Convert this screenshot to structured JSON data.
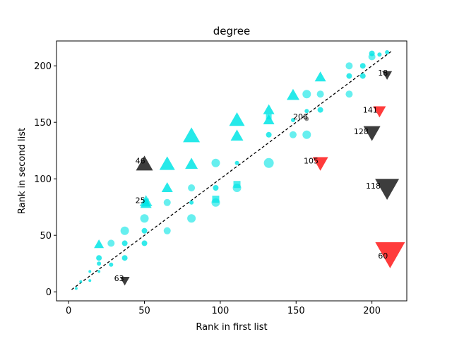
{
  "chart_data": {
    "type": "scatter",
    "title": "degree",
    "xlabel": "Rank in first list",
    "ylabel": "Rank in second list",
    "xlim": [
      -8,
      223
    ],
    "ylim": [
      -8,
      222
    ],
    "xticks": [
      0,
      50,
      100,
      150,
      200
    ],
    "yticks": [
      0,
      50,
      100,
      150,
      200
    ],
    "grid": false,
    "reference_line": {
      "x": [
        2,
        213
      ],
      "y": [
        2,
        213
      ],
      "style": "dashed",
      "color": "#000000"
    },
    "colors": {
      "cyan": "#00e5e5",
      "gray": "#222222",
      "red": "#ff2020"
    },
    "cyan_triangles_up": [
      [
        20,
        42,
        7
      ],
      [
        51,
        78,
        8
      ],
      [
        65,
        92,
        8
      ],
      [
        65,
        113,
        11
      ],
      [
        81,
        113,
        9
      ],
      [
        81,
        138,
        12
      ],
      [
        111,
        138,
        9
      ],
      [
        111,
        152,
        11
      ],
      [
        132,
        152,
        8
      ],
      [
        132,
        161,
        8
      ],
      [
        148,
        174,
        9
      ],
      [
        166,
        190,
        8
      ]
    ],
    "cyan_circles": [
      [
        5,
        3,
        2
      ],
      [
        8,
        9,
        2
      ],
      [
        14,
        10,
        2
      ],
      [
        14,
        18,
        2
      ],
      [
        20,
        18,
        2
      ],
      [
        20,
        25,
        3
      ],
      [
        20,
        30,
        4
      ],
      [
        28,
        24,
        3
      ],
      [
        28,
        43,
        5
      ],
      [
        37,
        30,
        4
      ],
      [
        37,
        43,
        4
      ],
      [
        37,
        54,
        6
      ],
      [
        50,
        43,
        4
      ],
      [
        50,
        54,
        4
      ],
      [
        50,
        65,
        6
      ],
      [
        65,
        54,
        5
      ],
      [
        65,
        79,
        5
      ],
      [
        81,
        65,
        6
      ],
      [
        81,
        79,
        3
      ],
      [
        81,
        92,
        5
      ],
      [
        97,
        79,
        6
      ],
      [
        97,
        92,
        4
      ],
      [
        97,
        114,
        6
      ],
      [
        111,
        92,
        6
      ],
      [
        111,
        114,
        3
      ],
      [
        132,
        114,
        7
      ],
      [
        132,
        139,
        4
      ],
      [
        148,
        139,
        5
      ],
      [
        148,
        152,
        3
      ],
      [
        157,
        139,
        6
      ],
      [
        157,
        160,
        3
      ],
      [
        157,
        175,
        6
      ],
      [
        166,
        161,
        4
      ],
      [
        166,
        175,
        5
      ],
      [
        185,
        175,
        5
      ],
      [
        185,
        191,
        4
      ],
      [
        185,
        200,
        5
      ],
      [
        194,
        191,
        4
      ],
      [
        194,
        200,
        4
      ],
      [
        200,
        208,
        5
      ],
      [
        200,
        211,
        4
      ],
      [
        205,
        210,
        3
      ],
      [
        210,
        212,
        3
      ]
    ],
    "cyan_squares": [
      [
        97,
        82,
        5
      ],
      [
        111,
        95,
        5
      ],
      [
        51,
        80,
        4
      ],
      [
        132,
        155,
        4
      ]
    ],
    "gray_points": [
      [
        157,
        153,
        3
      ]
    ],
    "triangles_down": [
      {
        "x": 50,
        "y": 113,
        "size": 12,
        "color": "gray",
        "dir": "up",
        "label": "46"
      },
      {
        "x": 37,
        "y": 10,
        "size": 7,
        "color": "gray",
        "dir": "down",
        "label": "63"
      },
      {
        "x": 210,
        "y": 192,
        "size": 7,
        "color": "gray",
        "dir": "down",
        "label": "18"
      },
      {
        "x": 205,
        "y": 160,
        "size": 9,
        "color": "red",
        "dir": "down",
        "label": "141"
      },
      {
        "x": 200,
        "y": 141,
        "size": 12,
        "color": "gray",
        "dir": "down",
        "label": "128"
      },
      {
        "x": 166,
        "y": 114,
        "size": 11,
        "color": "red",
        "dir": "down",
        "label": "105"
      },
      {
        "x": 210,
        "y": 92,
        "size": 17,
        "color": "gray",
        "dir": "down",
        "label": "118"
      },
      {
        "x": 212,
        "y": 34,
        "size": 21,
        "color": "red",
        "dir": "down",
        "label": "60"
      },
      {
        "x": 51,
        "y": 80,
        "size": 9,
        "color": "cyan",
        "dir": "up",
        "label": "25"
      }
    ],
    "annotations": [
      {
        "text": "46",
        "x": 44,
        "y": 116
      },
      {
        "text": "25",
        "x": 44,
        "y": 81
      },
      {
        "text": "63",
        "x": 30,
        "y": 12
      },
      {
        "text": "206",
        "x": 148,
        "y": 155
      },
      {
        "text": "105",
        "x": 155,
        "y": 116
      },
      {
        "text": "18",
        "x": 204,
        "y": 194
      },
      {
        "text": "141",
        "x": 194,
        "y": 161
      },
      {
        "text": "128",
        "x": 188,
        "y": 142
      },
      {
        "text": "118",
        "x": 196,
        "y": 94
      },
      {
        "text": "60",
        "x": 204,
        "y": 32
      }
    ]
  }
}
